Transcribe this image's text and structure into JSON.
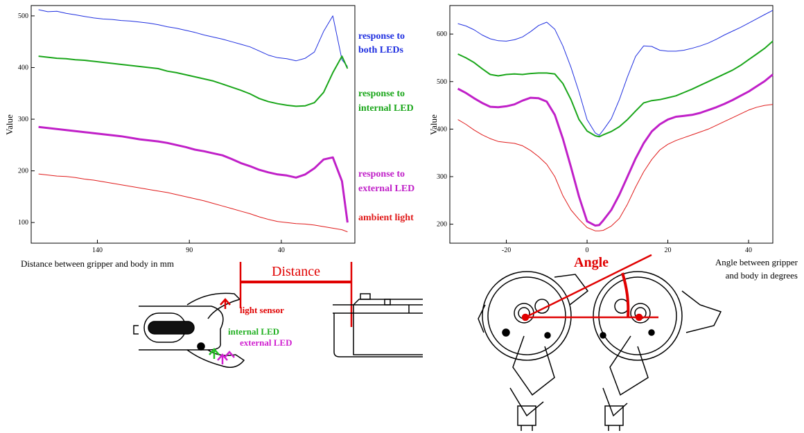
{
  "colors": {
    "both": "#1f2fe0",
    "internal": "#1aa61a",
    "external": "#c020c8",
    "ambient": "#e01a1a",
    "annotation": "#e00000"
  },
  "left": {
    "xlabel": "Distance between gripper and body in mm",
    "legend": {
      "both": [
        "response to",
        "both LEDs"
      ],
      "internal": [
        "response to",
        "internal LED"
      ],
      "external": [
        "response to",
        "external LED"
      ],
      "ambient": [
        "ambient light"
      ]
    },
    "diagram": {
      "distance_label": "Distance",
      "light_sensor": "light sensor",
      "internal_led": "internal LED",
      "external_led": "external LED"
    }
  },
  "right": {
    "xlabel": [
      "Angle between gripper",
      "and body in degrees"
    ],
    "diagram": {
      "angle_label": "Angle"
    }
  },
  "chart_data": [
    {
      "type": "line",
      "title": "",
      "xlabel": "Distance between gripper and body in mm",
      "ylabel": "Value",
      "xlim": [
        176,
        0
      ],
      "ylim": [
        60,
        520
      ],
      "x_reversed": true,
      "xticks": [
        140,
        90,
        40
      ],
      "yticks": [
        100,
        200,
        300,
        400,
        500
      ],
      "grid": false,
      "legend_position": "right",
      "x": [
        172,
        167,
        162,
        157,
        152,
        147,
        142,
        137,
        132,
        127,
        122,
        117,
        112,
        107,
        102,
        97,
        92,
        87,
        82,
        77,
        72,
        67,
        62,
        57,
        52,
        47,
        42,
        37,
        32,
        27,
        22,
        17,
        12,
        7,
        4
      ],
      "series": [
        {
          "name": "response to both LEDs",
          "color_key": "both",
          "width": 1,
          "values": [
            512,
            508,
            509,
            505,
            502,
            499,
            496,
            494,
            493,
            491,
            490,
            488,
            486,
            483,
            479,
            476,
            472,
            468,
            463,
            459,
            455,
            450,
            445,
            440,
            432,
            424,
            419,
            417,
            413,
            418,
            430,
            470,
            500,
            415,
            402
          ]
        },
        {
          "name": "response to internal LED",
          "color_key": "internal",
          "width": 2,
          "values": [
            422,
            420,
            418,
            417,
            415,
            414,
            412,
            410,
            408,
            406,
            404,
            402,
            400,
            398,
            393,
            390,
            386,
            382,
            378,
            374,
            368,
            362,
            356,
            349,
            340,
            334,
            330,
            327,
            325,
            326,
            332,
            352,
            390,
            422,
            398
          ]
        },
        {
          "name": "response to external LED",
          "color_key": "external",
          "width": 3,
          "values": [
            285,
            283,
            281,
            279,
            277,
            275,
            273,
            271,
            269,
            267,
            264,
            261,
            259,
            257,
            254,
            250,
            246,
            241,
            238,
            234,
            230,
            223,
            215,
            209,
            202,
            197,
            193,
            191,
            187,
            193,
            205,
            222,
            226,
            180,
            100
          ]
        },
        {
          "name": "ambient light",
          "color_key": "ambient",
          "width": 1,
          "values": [
            194,
            192,
            190,
            189,
            187,
            184,
            182,
            179,
            176,
            173,
            170,
            167,
            164,
            161,
            158,
            154,
            150,
            146,
            142,
            137,
            132,
            127,
            122,
            117,
            111,
            106,
            102,
            100,
            98,
            97,
            95,
            92,
            89,
            86,
            82
          ]
        }
      ]
    },
    {
      "type": "line",
      "title": "",
      "xlabel": "Angle between gripper and body in degrees",
      "ylabel": "Value",
      "xlim": [
        -34,
        46
      ],
      "ylim": [
        160,
        660
      ],
      "xticks": [
        -20,
        0,
        20,
        40
      ],
      "yticks": [
        200,
        300,
        400,
        500,
        600
      ],
      "grid": false,
      "x": [
        -32,
        -30,
        -28,
        -26,
        -24,
        -22,
        -20,
        -18,
        -16,
        -14,
        -12,
        -10,
        -8,
        -6,
        -4,
        -2,
        0,
        2,
        3,
        4,
        6,
        8,
        10,
        12,
        14,
        16,
        18,
        20,
        22,
        24,
        26,
        28,
        30,
        32,
        34,
        36,
        38,
        40,
        42,
        44,
        46
      ],
      "series": [
        {
          "name": "response to both LEDs",
          "color_key": "both",
          "width": 1,
          "values": [
            622,
            617,
            609,
            598,
            590,
            586,
            585,
            588,
            594,
            605,
            618,
            625,
            610,
            575,
            530,
            478,
            420,
            392,
            387,
            398,
            422,
            462,
            510,
            553,
            575,
            574,
            566,
            564,
            564,
            566,
            570,
            575,
            581,
            589,
            598,
            606,
            614,
            623,
            632,
            641,
            650
          ]
        },
        {
          "name": "response to internal LED",
          "color_key": "internal",
          "width": 2,
          "values": [
            558,
            550,
            540,
            527,
            515,
            512,
            515,
            516,
            515,
            517,
            518,
            518,
            516,
            496,
            462,
            420,
            396,
            386,
            384,
            388,
            395,
            405,
            420,
            438,
            455,
            460,
            462,
            466,
            470,
            477,
            484,
            492,
            500,
            508,
            516,
            524,
            534,
            546,
            558,
            570,
            585
          ]
        },
        {
          "name": "response to external LED",
          "color_key": "external",
          "width": 3,
          "values": [
            485,
            476,
            465,
            455,
            447,
            446,
            448,
            452,
            460,
            466,
            465,
            458,
            430,
            380,
            320,
            258,
            206,
            197,
            198,
            208,
            230,
            262,
            300,
            338,
            370,
            395,
            410,
            420,
            426,
            428,
            430,
            434,
            440,
            446,
            453,
            461,
            470,
            479,
            490,
            501,
            515
          ]
        },
        {
          "name": "ambient light",
          "color_key": "ambient",
          "width": 1,
          "values": [
            420,
            410,
            398,
            388,
            380,
            374,
            372,
            370,
            365,
            355,
            342,
            326,
            300,
            260,
            230,
            210,
            193,
            186,
            186,
            187,
            196,
            212,
            242,
            278,
            310,
            336,
            356,
            368,
            376,
            382,
            388,
            394,
            400,
            408,
            416,
            424,
            432,
            440,
            446,
            450,
            452
          ]
        }
      ]
    }
  ]
}
